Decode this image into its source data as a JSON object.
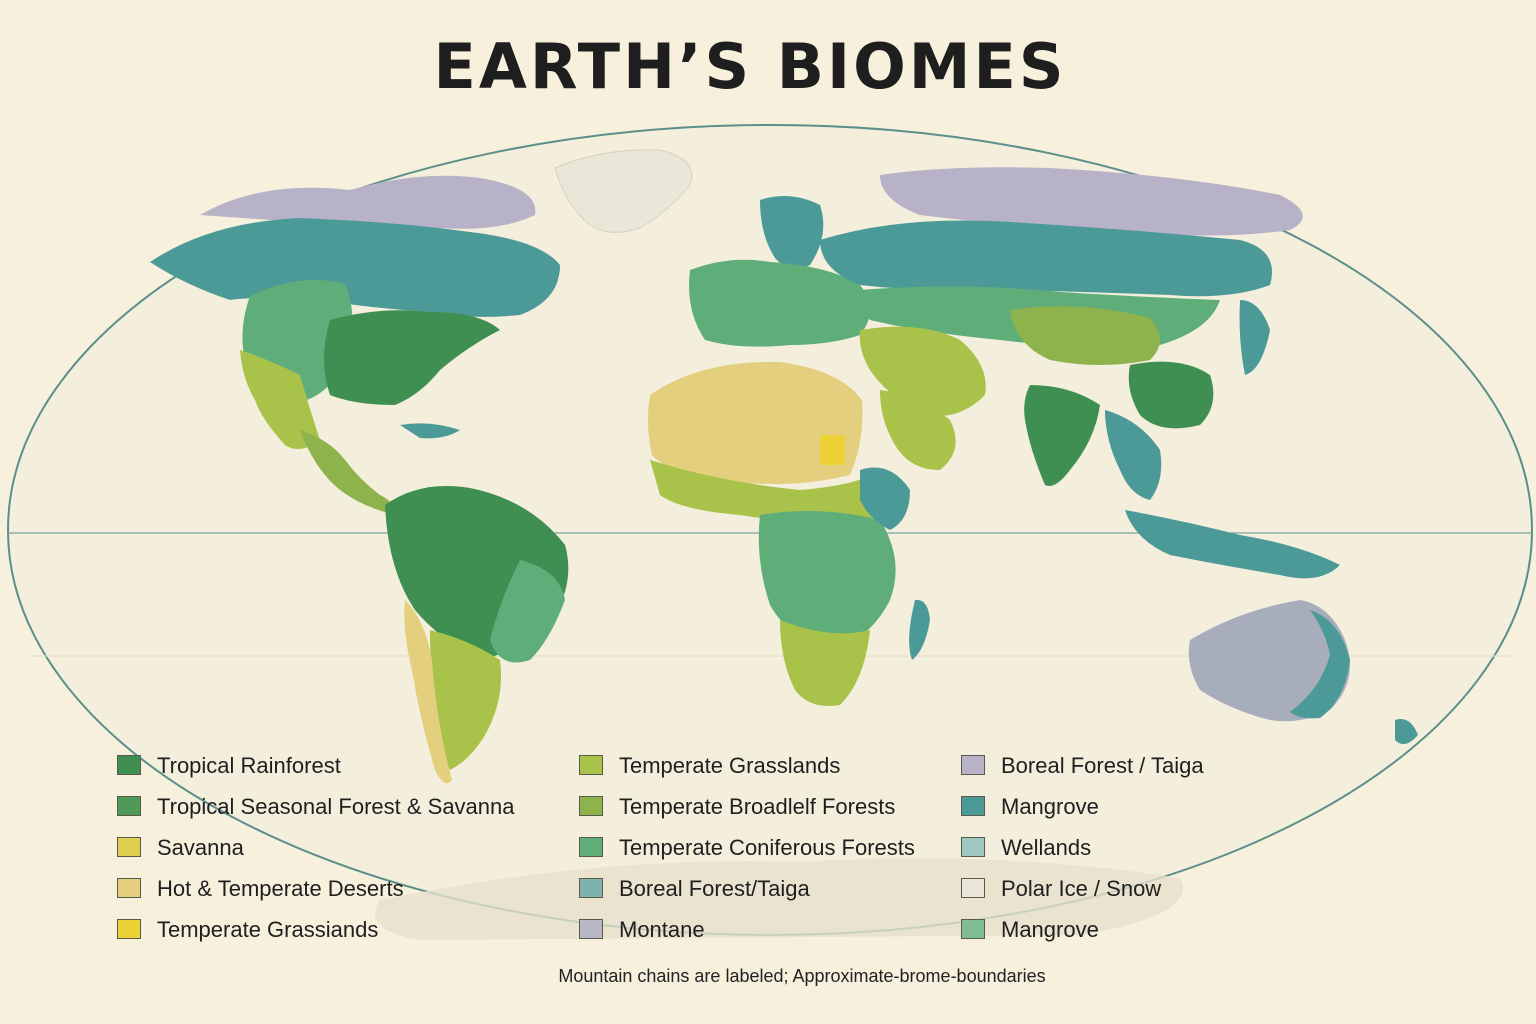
{
  "title": "EARTH’S BIOMES",
  "footnote": "Mountain chains are labeled; Approximate-brome-boundaries",
  "colors": {
    "background": "#f6f0dc",
    "ocean_outline": "#5b8f8a",
    "tropical_rainforest": "#3f8f52",
    "tropical_seasonal": "#4f9a58",
    "savanna": "#ddd050",
    "hot_desert": "#e3cf7e",
    "temperate_grassland_yellow": "#ecd236",
    "temperate_grassland": "#a9c24a",
    "temperate_broadleaf": "#8eb34c",
    "temperate_coniferous": "#5fae7a",
    "boreal_teal": "#7fb2ac",
    "montane": "#b9b6c6",
    "boreal_lavender": "#b7b2c7",
    "mangrove": "#4c9a98",
    "wetlands": "#9fc8c0",
    "polar_ice": "#ebe7d8",
    "mangrove_green": "#7fbc93"
  },
  "legend": {
    "col1": [
      {
        "label": "Tropical Rainforest",
        "color": "#3f8f52"
      },
      {
        "label": "Tropical Seasonal Forest & Savanna",
        "color": "#4f9a58"
      },
      {
        "label": "Savanna",
        "color": "#ddd050"
      },
      {
        "label": "Hot & Temperate Deserts",
        "color": "#e3cf7e"
      },
      {
        "label": "Temperate Grassiands",
        "color": "#ecd236"
      }
    ],
    "col2": [
      {
        "label": "Temperate Grasslands",
        "color": "#a9c24a"
      },
      {
        "label": "Temperate Broadlelf Forests",
        "color": "#8eb34c"
      },
      {
        "label": "Temperate Coniferous Forests",
        "color": "#5fae7a"
      },
      {
        "label": "Boreal Forest/Taiga",
        "color": "#7fb2ac"
      },
      {
        "label": "Montane",
        "color": "#b9b6c6"
      }
    ],
    "col3": [
      {
        "label": "Boreal Forest / Taiga",
        "color": "#b7b2c7"
      },
      {
        "label": "Mangrove",
        "color": "#4c9a98"
      },
      {
        "label": "Wellands",
        "color": "#9fc8c0"
      },
      {
        "label": "Polar Ice / Snow",
        "color": "#ebe7d8"
      },
      {
        "label": "Mangrove",
        "color": "#7fbc93"
      }
    ]
  }
}
